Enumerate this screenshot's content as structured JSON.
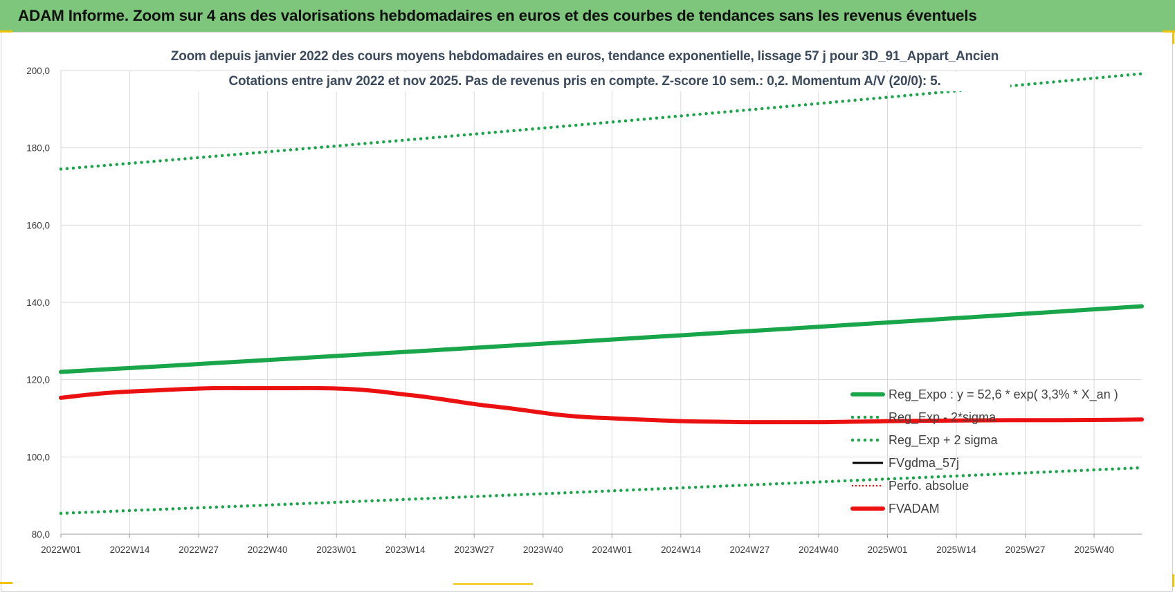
{
  "banner": {
    "title": "ADAM Informe. Zoom sur 4 ans des valorisations hebdomadaires en euros et des courbes de tendances sans les revenus éventuels"
  },
  "chart_data": {
    "type": "line",
    "title_line1": "Zoom depuis janvier 2022 des cours moyens hebdomadaires en euros, tendance exponentielle, lissage 57 j pour 3D_91_Appart_Ancien",
    "title_line2": "Cotations entre janv 2022 et nov 2025. Pas de revenus pris en compte. Z-score 10 sem.: 0,2. Momentum A/V (20/0): 5.",
    "x_range": [
      1,
      205
    ],
    "x_ticks": [
      {
        "pos": 1,
        "label": "2022W01"
      },
      {
        "pos": 14,
        "label": "2022W14"
      },
      {
        "pos": 27,
        "label": "2022W27"
      },
      {
        "pos": 40,
        "label": "2022W40"
      },
      {
        "pos": 53,
        "label": "2023W01"
      },
      {
        "pos": 66,
        "label": "2023W14"
      },
      {
        "pos": 79,
        "label": "2023W27"
      },
      {
        "pos": 92,
        "label": "2023W40"
      },
      {
        "pos": 105,
        "label": "2024W01"
      },
      {
        "pos": 118,
        "label": "2024W14"
      },
      {
        "pos": 131,
        "label": "2024W27"
      },
      {
        "pos": 144,
        "label": "2024W40"
      },
      {
        "pos": 157,
        "label": "2025W01"
      },
      {
        "pos": 170,
        "label": "2025W14"
      },
      {
        "pos": 183,
        "label": "2025W27"
      },
      {
        "pos": 196,
        "label": "2025W40"
      }
    ],
    "ylim": [
      80,
      200
    ],
    "y_ticks": [
      {
        "value": 80,
        "label": "80,0"
      },
      {
        "value": 100,
        "label": "100,0"
      },
      {
        "value": 120,
        "label": "120,0"
      },
      {
        "value": 140,
        "label": "140,0"
      },
      {
        "value": 160,
        "label": "160,0"
      },
      {
        "value": 180,
        "label": "180,0"
      },
      {
        "value": 200,
        "label": "200,0"
      }
    ],
    "grid": true,
    "legend_position": "bottom-right",
    "series": [
      {
        "name": "Reg_Expo : y = 52,6 * exp( 3,3% *  X_an )",
        "color": "#19a54a",
        "style": "solid-thick",
        "x": [
          1,
          205
        ],
        "y": [
          122.0,
          139.0
        ]
      },
      {
        "name": "Reg_Exp - 2*sigma",
        "color": "#19a54a",
        "style": "dotted",
        "x": [
          1,
          205
        ],
        "y": [
          85.4,
          97.2
        ]
      },
      {
        "name": "Reg_Exp + 2 sigma",
        "color": "#19a54a",
        "style": "dotted",
        "x": [
          1,
          205
        ],
        "y": [
          174.5,
          199.2
        ]
      },
      {
        "name": "FVgdma_57j",
        "color": "#000000",
        "style": "solid",
        "x": [
          1,
          10,
          20,
          25,
          30,
          35,
          40,
          45,
          50,
          55,
          60,
          65,
          70,
          75,
          80,
          85,
          90,
          95,
          100,
          105,
          110,
          115,
          120,
          125,
          130,
          135,
          140,
          145,
          150,
          155,
          160,
          170,
          180,
          190,
          200,
          205
        ],
        "y": [
          115.3,
          116.6,
          117.3,
          117.6,
          117.8,
          117.8,
          117.8,
          117.8,
          117.8,
          117.6,
          117.1,
          116.3,
          115.5,
          114.5,
          113.5,
          112.7,
          111.8,
          110.9,
          110.3,
          110.0,
          109.7,
          109.4,
          109.2,
          109.1,
          109.0,
          109.0,
          109.0,
          109.0,
          109.1,
          109.2,
          109.3,
          109.4,
          109.5,
          109.5,
          109.6,
          109.7
        ]
      },
      {
        "name": "Perfo. absolue",
        "color": "#e01010",
        "style": "dotted-thin",
        "x": [
          1,
          10,
          20,
          25,
          30,
          35,
          40,
          45,
          50,
          55,
          60,
          65,
          70,
          75,
          80,
          85,
          90,
          95,
          100,
          105,
          110,
          115,
          120,
          125,
          130,
          135,
          140,
          145,
          150,
          155,
          160,
          170,
          180,
          190,
          200,
          205
        ],
        "y": [
          115.3,
          116.6,
          117.3,
          117.6,
          117.8,
          117.8,
          117.8,
          117.8,
          117.8,
          117.6,
          117.1,
          116.3,
          115.5,
          114.5,
          113.5,
          112.7,
          111.8,
          110.9,
          110.3,
          110.0,
          109.7,
          109.4,
          109.2,
          109.1,
          109.0,
          109.0,
          109.0,
          109.0,
          109.1,
          109.2,
          109.3,
          109.4,
          109.5,
          109.5,
          109.6,
          109.7
        ]
      },
      {
        "name": "FVADAM",
        "color": "#ee1111",
        "style": "solid-thick",
        "x": [
          1,
          10,
          20,
          25,
          30,
          35,
          40,
          45,
          50,
          55,
          60,
          65,
          70,
          75,
          80,
          85,
          90,
          95,
          100,
          105,
          110,
          115,
          120,
          125,
          130,
          135,
          140,
          145,
          150,
          155,
          160,
          170,
          180,
          190,
          200,
          205
        ],
        "y": [
          115.3,
          116.6,
          117.3,
          117.6,
          117.8,
          117.8,
          117.8,
          117.8,
          117.8,
          117.6,
          117.1,
          116.3,
          115.5,
          114.5,
          113.5,
          112.7,
          111.8,
          110.9,
          110.3,
          110.0,
          109.7,
          109.4,
          109.2,
          109.1,
          109.0,
          109.0,
          109.0,
          109.0,
          109.1,
          109.2,
          109.3,
          109.4,
          109.5,
          109.5,
          109.6,
          109.7
        ]
      }
    ]
  }
}
